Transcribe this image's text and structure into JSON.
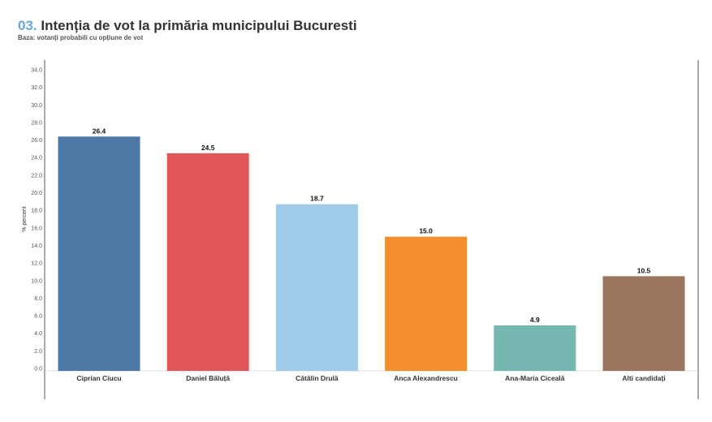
{
  "header": {
    "number": "03.",
    "title": "Intenția de vot la primăria municipului Bucuresti",
    "subtitle": "Baza: votanți probabili cu opțiune de vot"
  },
  "chart_data": {
    "type": "bar",
    "categories": [
      "Ciprian Ciucu",
      "Daniel Băluță",
      "Cătălin Drulă",
      "Anca Alexandrescu",
      "Ana-Maria Ciceală",
      "Alti candidați"
    ],
    "values": [
      26.4,
      24.5,
      18.7,
      15.0,
      4.9,
      10.5
    ],
    "value_labels": [
      "26.4",
      "24.5",
      "18.7",
      "15.0",
      "4.9",
      "10.5"
    ],
    "colors": [
      "#4e79a7",
      "#e15759",
      "#a0cbe8",
      "#f28e2b",
      "#76b7b2",
      "#9c755f"
    ],
    "ylabel": "% percent",
    "ylim": [
      0,
      34
    ],
    "yticks": [
      "0.0",
      "2.0",
      "4.0",
      "6.0",
      "8.0",
      "10.0",
      "12.0",
      "14.0",
      "16.0",
      "18.0",
      "20.0",
      "22.0",
      "24.0",
      "26.0",
      "28.0",
      "30.0",
      "32.0",
      "34.0"
    ],
    "grid": false,
    "legend": "none"
  }
}
